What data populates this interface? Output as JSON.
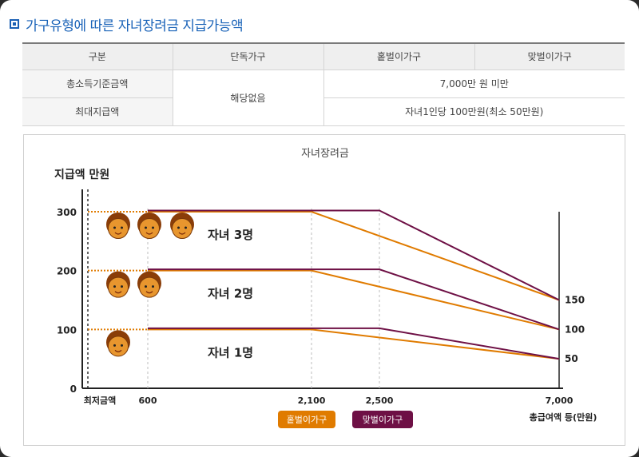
{
  "header": {
    "title": "가구유형에 따른 자녀장려금 지급가능액"
  },
  "table": {
    "columns": [
      "구분",
      "단독가구",
      "홑벌이가구",
      "맞벌이가구"
    ],
    "rows": [
      {
        "label": "총소득기준금액",
        "single": "해당없음",
        "couple": "7,000만 원 미만"
      },
      {
        "label": "최대지급액",
        "single": "해당없음",
        "couple": "자녀1인당 100만원(최소 50만원)"
      }
    ]
  },
  "chart_data": {
    "type": "line",
    "title": "자녀장려금",
    "ylabel": "지급액 만원",
    "xlabel": "총급여액 등(만원)",
    "x_min_label": "최저금액",
    "x_ticks": [
      600,
      2100,
      2500,
      7000
    ],
    "x_tick_labels": [
      "600",
      "2,100",
      "2,500",
      "7,000"
    ],
    "y_ticks": [
      0,
      100,
      200,
      300
    ],
    "y_tick_labels": [
      "0",
      "100",
      "200",
      "300"
    ],
    "right_labels": [
      "150",
      "100",
      "50"
    ],
    "ylim": [
      0,
      300
    ],
    "xlim": [
      0,
      7000
    ],
    "groups": [
      {
        "label": "자녀 3명",
        "children": 3,
        "max": 300,
        "min": 150
      },
      {
        "label": "자녀 2명",
        "children": 2,
        "max": 200,
        "min": 100
      },
      {
        "label": "자녀 1명",
        "children": 1,
        "max": 100,
        "min": 50
      }
    ],
    "series": [
      {
        "name": "홑벌이가구",
        "color": "#e07b00",
        "plateau_end": 2100
      },
      {
        "name": "맞벌이가구",
        "color": "#6e1045",
        "plateau_end": 2500
      }
    ],
    "legend_position": "bottom-center",
    "colors": {
      "single_earner": "#e07b00",
      "dual_earner": "#6e1045",
      "child_face": "#e8962e"
    }
  }
}
